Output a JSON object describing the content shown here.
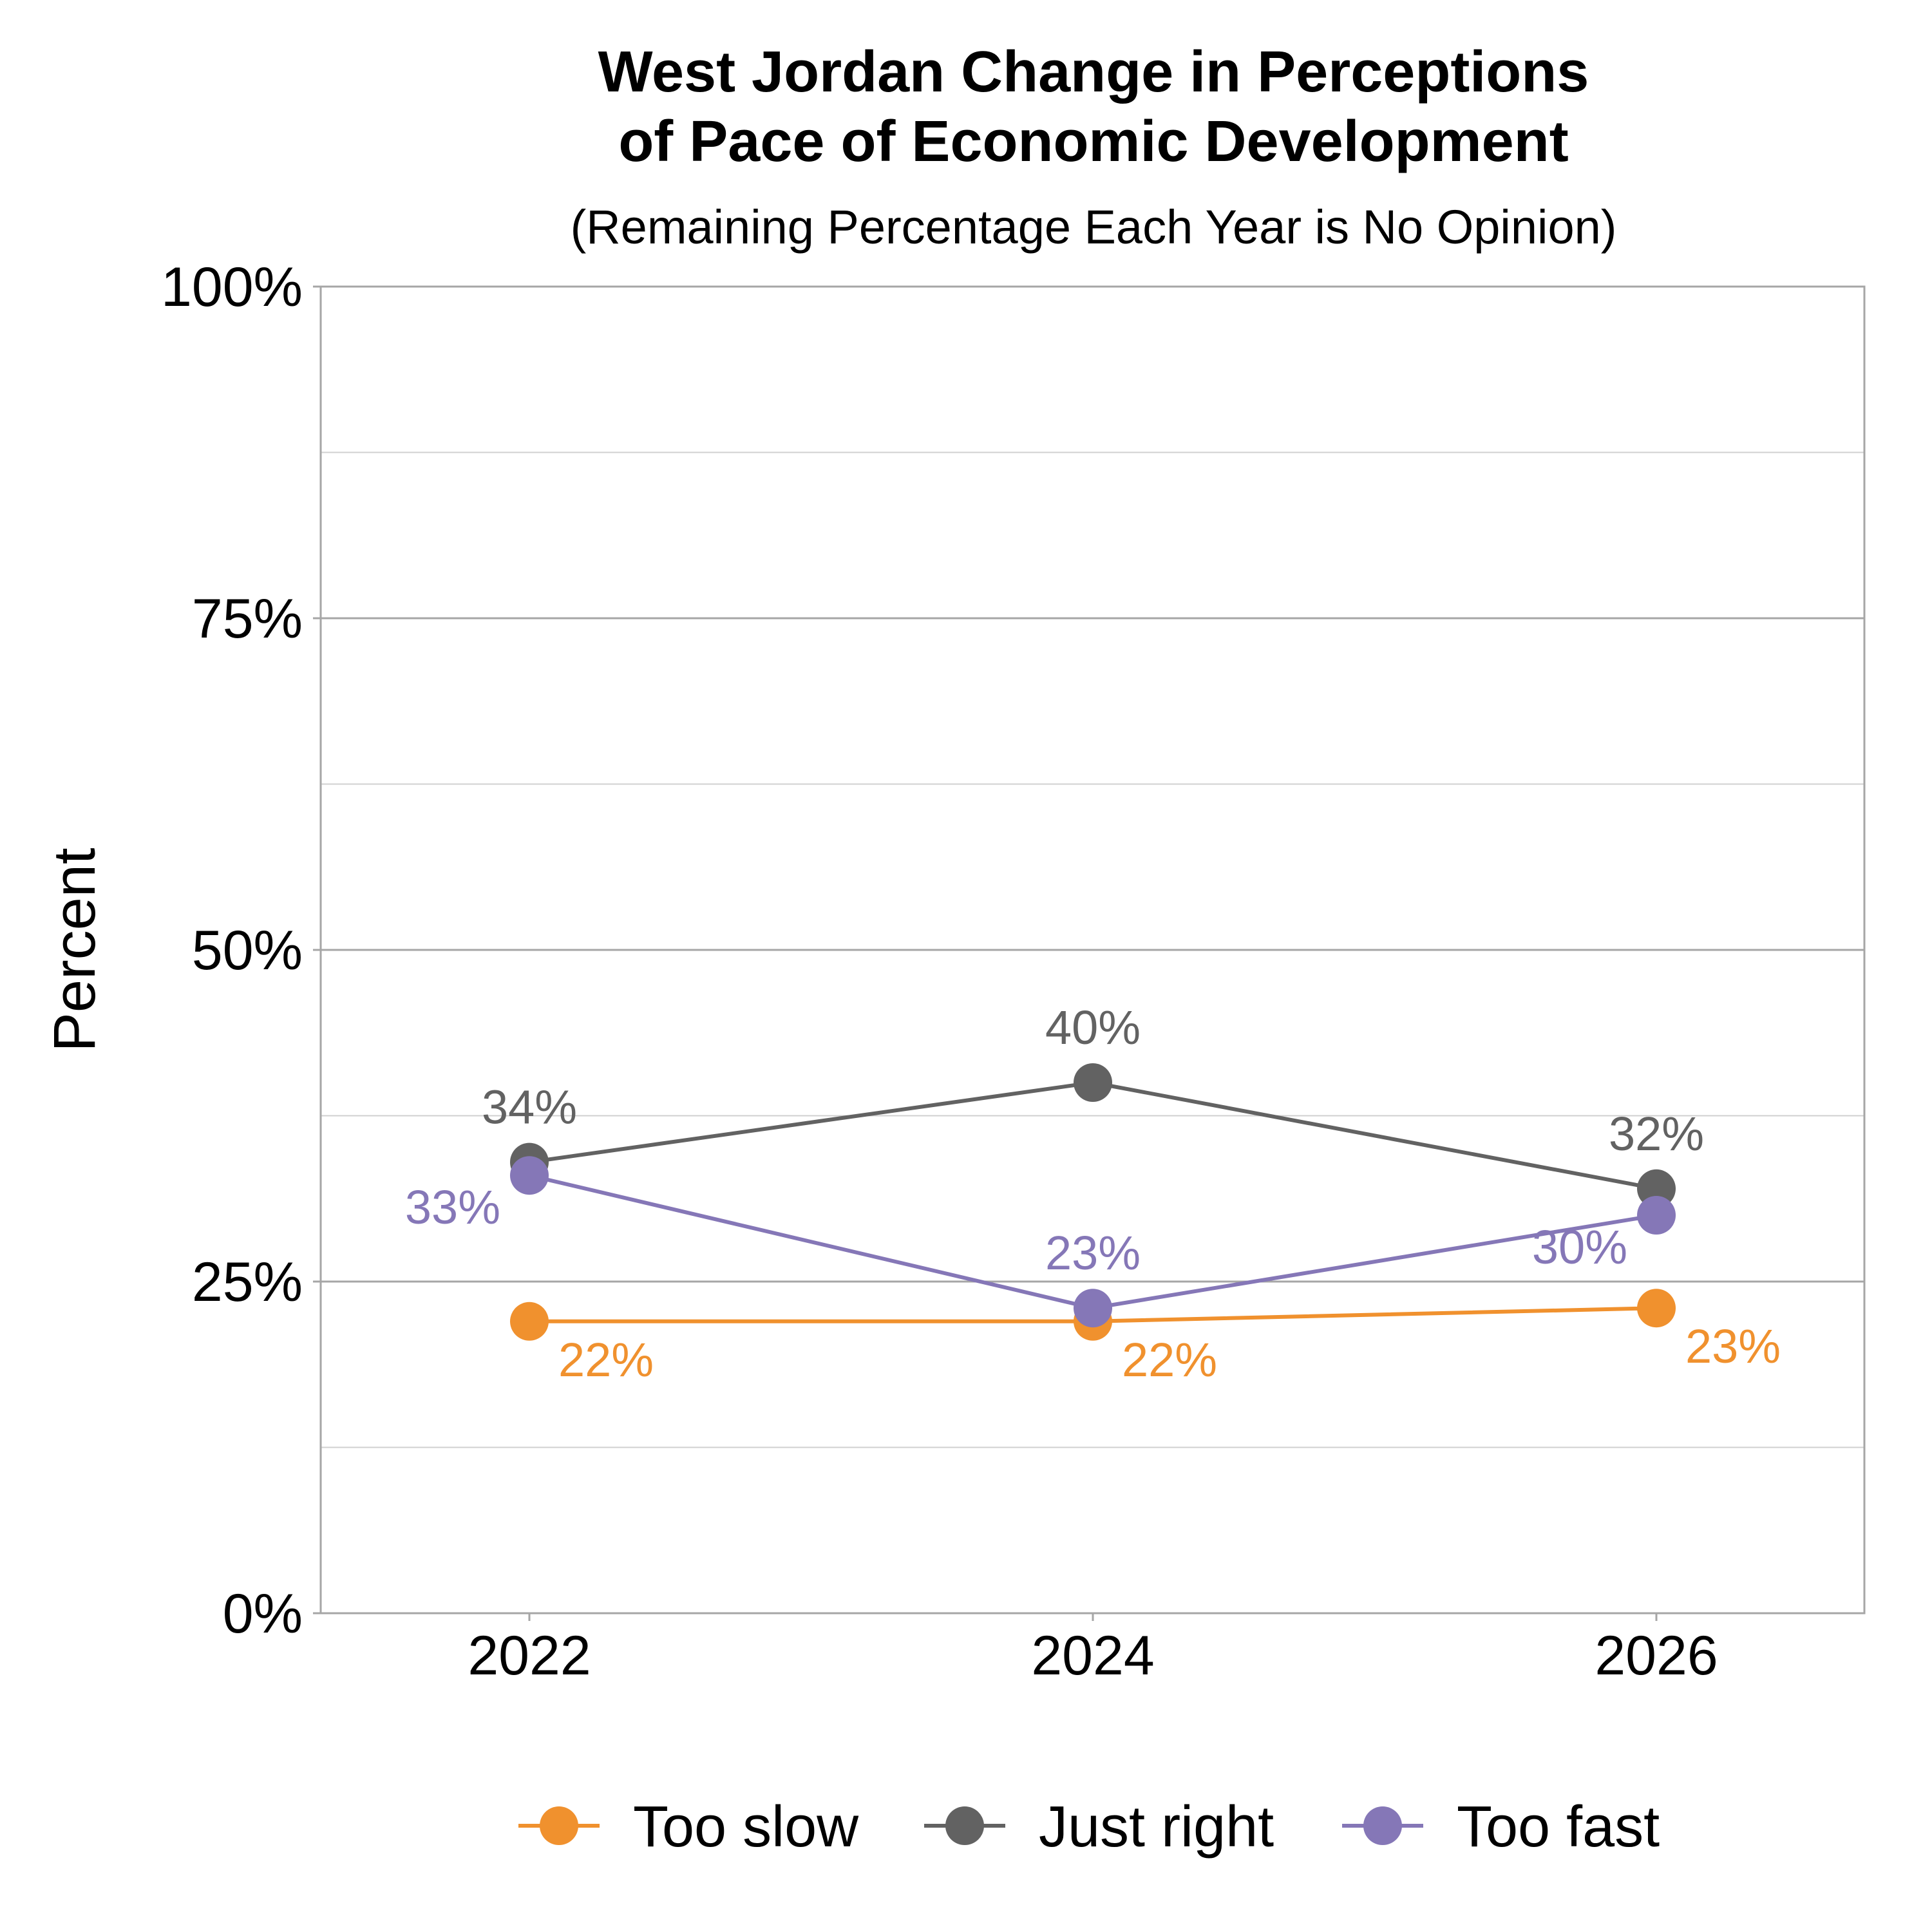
{
  "chart_data": {
    "type": "line",
    "title_line1": "West Jordan Change in Perceptions",
    "title_line2": "of Pace of Economic Development",
    "subtitle": "(Remaining Percentage Each Year is No Opinion)",
    "xlabel": "",
    "ylabel": "Percent",
    "x": [
      "2022",
      "2024",
      "2026"
    ],
    "ylim": [
      0,
      100
    ],
    "yticks": [
      0,
      25,
      50,
      75,
      100
    ],
    "ytick_labels": [
      "0%",
      "25%",
      "50%",
      "75%",
      "100%"
    ],
    "grid": true,
    "legend_position": "bottom",
    "series": [
      {
        "name": "Too slow",
        "color": "#F0912E",
        "values": [
          22,
          22,
          23
        ],
        "labels": [
          "22%",
          "22%",
          "23%"
        ]
      },
      {
        "name": "Just right",
        "color": "#626262",
        "values": [
          34,
          40,
          32
        ],
        "labels": [
          "34%",
          "40%",
          "32%"
        ]
      },
      {
        "name": "Too fast",
        "color": "#8577B7",
        "values": [
          33,
          23,
          30
        ],
        "labels": [
          "33%",
          "23%",
          "30%"
        ]
      }
    ]
  }
}
